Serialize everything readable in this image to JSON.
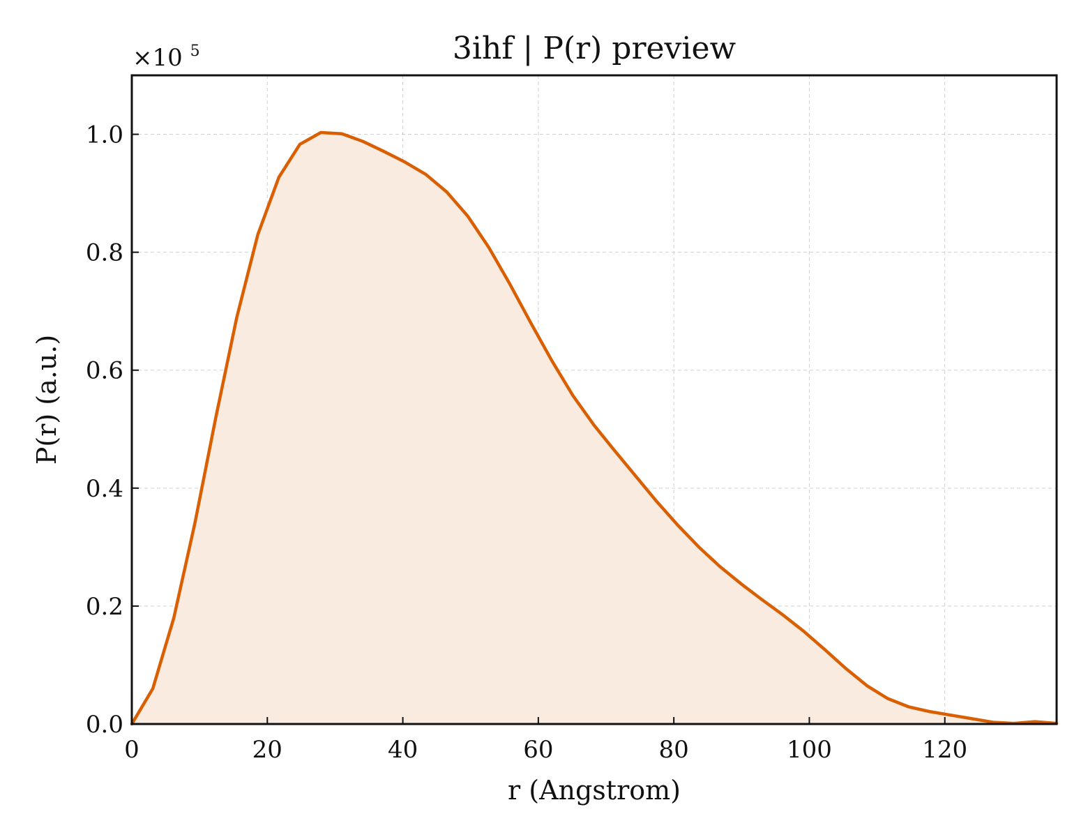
{
  "chart_data": {
    "type": "area",
    "title": "3ihf | P(r) preview",
    "xlabel": "r (Angstrom)",
    "ylabel": "P(r) (a.u.)",
    "y_offset_text": "×10",
    "y_offset_exponent": "5",
    "xlim": [
      0,
      136.5
    ],
    "ylim": [
      0,
      1.1
    ],
    "x_ticks": [
      0,
      20,
      40,
      60,
      80,
      100,
      120
    ],
    "x_tick_labels": [
      "0",
      "20",
      "40",
      "60",
      "80",
      "100",
      "120"
    ],
    "y_ticks": [
      0,
      0.2,
      0.4,
      0.6,
      0.8,
      1.0
    ],
    "y_tick_labels": [
      "0.0",
      "0.2",
      "0.4",
      "0.6",
      "0.8",
      "1.0"
    ],
    "grid": true,
    "colors": {
      "line": "#d95f02",
      "fill": "#f9ebe0"
    },
    "series": [
      {
        "x": [
          0,
          3.1,
          6.2,
          9.3,
          12.4,
          15.5,
          18.6,
          21.7,
          24.8,
          27.9,
          31.0,
          34.1,
          37.2,
          40.3,
          43.4,
          46.5,
          49.6,
          52.7,
          55.8,
          58.9,
          62.0,
          65.1,
          68.2,
          71.3,
          74.4,
          77.5,
          80.6,
          83.7,
          86.8,
          89.9,
          93.0,
          96.1,
          99.2,
          102.3,
          105.4,
          108.5,
          111.6,
          114.7,
          117.8,
          120.9,
          124.0,
          127.1,
          130.2,
          133.3,
          136.5
        ],
        "y": [
          0.0,
          0.06,
          0.18,
          0.34,
          0.52,
          0.69,
          0.83,
          0.927,
          0.983,
          1.003,
          1.001,
          0.988,
          0.971,
          0.953,
          0.932,
          0.902,
          0.861,
          0.808,
          0.746,
          0.68,
          0.616,
          0.557,
          0.507,
          0.463,
          0.42,
          0.377,
          0.337,
          0.3,
          0.267,
          0.238,
          0.211,
          0.185,
          0.157,
          0.126,
          0.094,
          0.065,
          0.043,
          0.029,
          0.021,
          0.015,
          0.009,
          0.003,
          0.001,
          0.004,
          0.001
        ]
      }
    ]
  }
}
